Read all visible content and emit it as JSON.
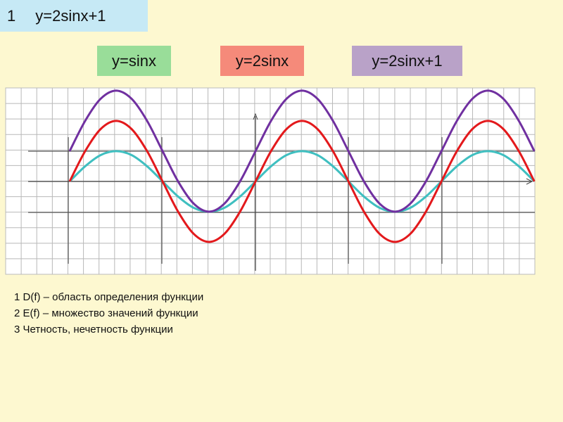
{
  "header": {
    "number": "1",
    "title": "y=2sinx+1"
  },
  "chart_data": {
    "type": "line",
    "x": [
      -360,
      -330,
      -300,
      -270,
      -240,
      -210,
      -180,
      -150,
      -120,
      -90,
      -60,
      -30,
      0,
      30,
      60,
      90,
      120,
      150,
      180,
      210,
      240,
      270,
      300,
      330,
      360,
      390,
      420,
      450,
      480,
      510,
      540
    ],
    "xlim": [
      -484,
      541
    ],
    "ylim": [
      -3.07,
      3.09
    ],
    "grid": true,
    "series": [
      {
        "name": "y=sinx",
        "color": "#3fbfc0",
        "box_color": "#99dd99",
        "values": [
          0,
          0.5,
          0.87,
          1,
          0.87,
          0.5,
          0,
          -0.5,
          -0.87,
          -1,
          -0.87,
          -0.5,
          0,
          0.5,
          0.87,
          1,
          0.87,
          0.5,
          0,
          -0.5,
          -0.87,
          -1,
          -0.87,
          -0.5,
          0,
          0.5,
          0.87,
          1,
          0.87,
          0.5,
          0
        ]
      },
      {
        "name": "y=2sinx",
        "color": "#e3191c",
        "box_color": "#f58a7a",
        "values": [
          0,
          1,
          1.73,
          2,
          1.73,
          1,
          0,
          -1,
          -1.73,
          -2,
          -1.73,
          -1,
          0,
          1,
          1.73,
          2,
          1.73,
          1,
          0,
          -1,
          -1.73,
          -2,
          -1.73,
          -1,
          0,
          1,
          1.73,
          2,
          1.73,
          1,
          0
        ]
      },
      {
        "name": "y=2sinx+1",
        "color": "#7030a0",
        "box_color": "#b9a2c8",
        "values": [
          1,
          2,
          2.73,
          3,
          2.73,
          2,
          1,
          0,
          -0.73,
          -1,
          -0.73,
          0,
          1,
          2,
          2.73,
          3,
          2.73,
          2,
          1,
          0,
          -0.73,
          -1,
          -0.73,
          0,
          1,
          2,
          2.73,
          3,
          2.73,
          2,
          1
        ]
      }
    ]
  },
  "notes": [
    "1 D(f) – область определения функции",
    "2 E(f) – множество значений функции",
    "3 Четность, нечетность функции"
  ]
}
